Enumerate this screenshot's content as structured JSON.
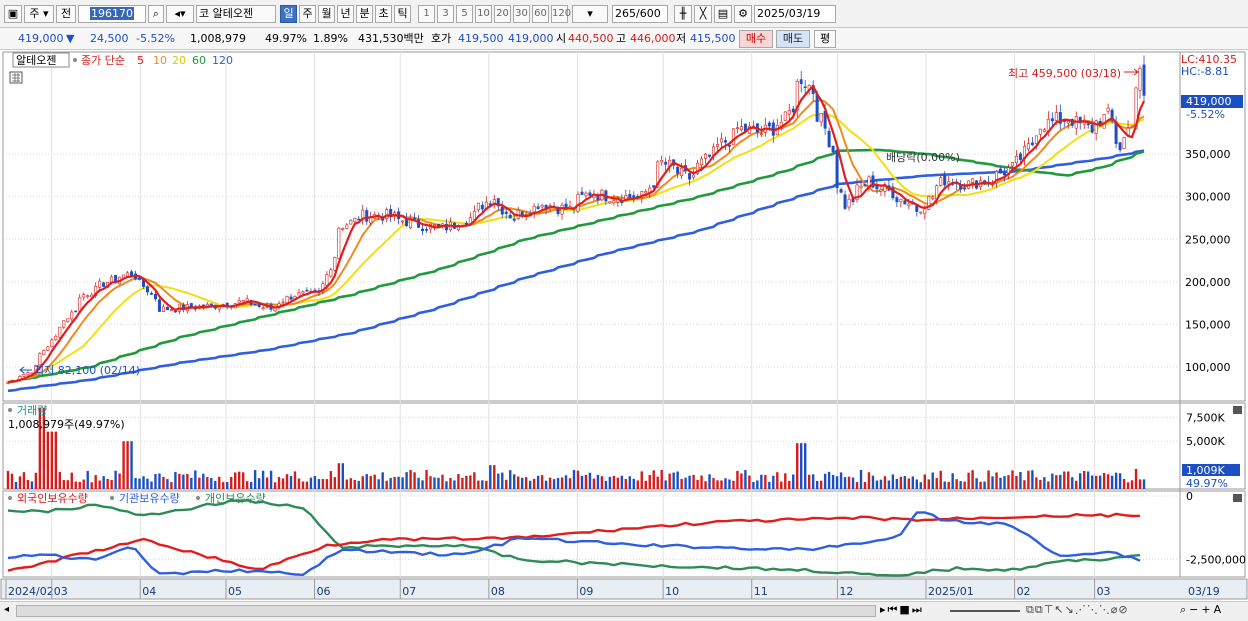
{
  "toolbar": {
    "period_type": "주",
    "prev_label": "전",
    "code": "196170",
    "market_tag": "코",
    "stock_name": "알테오젠",
    "periods": [
      "일",
      "주",
      "월",
      "년",
      "분",
      "초",
      "틱"
    ],
    "selected_period": "일",
    "intervals": [
      "1",
      "3",
      "5",
      "10",
      "20",
      "30",
      "60",
      "120"
    ],
    "count": "265",
    "max_count": "/600",
    "date": "2025/03/19"
  },
  "info": {
    "price": "419,000",
    "arrow": "▼",
    "change": "24,500",
    "change_pct": "-5.52%",
    "volume": "1,008,979",
    "vol_ratio": "49.97%",
    "turnover": "1.89%",
    "amount": "431,530백만",
    "bid_label": "호가",
    "bid": "419,500",
    "ask": "419,000",
    "open_label": "시",
    "open": "440,500",
    "high_label": "고",
    "high": "446,000",
    "low_label": "저",
    "low": "415,500",
    "buy": "매수",
    "sell": "매도",
    "eval": "평"
  },
  "colors": {
    "ma5": "#e01e1e",
    "ma10": "#f08a1c",
    "ma20": "#f0e010",
    "ma60": "#1f9a3c",
    "ma120": "#2f5fe0",
    "up": "#d61b1b",
    "down": "#1c4fc4",
    "foreign": "#e01e1e",
    "inst": "#2f5fe0",
    "indiv": "#2e8b57"
  },
  "chart_data": [
    {
      "type": "candlestick",
      "title": "알테오젠",
      "indicator_label": "종가 단순",
      "ma_periods": [
        "5",
        "10",
        "20",
        "60",
        "120"
      ],
      "lc_label": "LC:410.35",
      "hc_label": "HC:-8.81",
      "current_price_label": "419,000",
      "current_pct_label": "-5.52%",
      "high_annotation": "최고 459,500 (03/18)",
      "low_annotation": "최저 82,100 (02/14)",
      "dividend_annotation": "배당락(0.00%)",
      "ylim": [
        60000,
        470000
      ],
      "y_ticks": [
        100000,
        150000,
        200000,
        250000,
        300000,
        350000
      ],
      "y_tick_labels": [
        "100,000",
        "150,000",
        "200,000",
        "250,000",
        "300,000",
        "350,000"
      ],
      "x_months": [
        "2024/02",
        "03",
        "04",
        "05",
        "06",
        "07",
        "08",
        "09",
        "10",
        "11",
        "12",
        "2025/01",
        "02",
        "03",
        "03/19"
      ],
      "close_path": [
        [
          "2024-02-14",
          82100
        ],
        [
          "2024-02-22",
          95000
        ],
        [
          "2024-03-04",
          150000
        ],
        [
          "2024-03-12",
          185000
        ],
        [
          "2024-03-20",
          200000
        ],
        [
          "2024-03-28",
          210000
        ],
        [
          "2024-04-02",
          195000
        ],
        [
          "2024-04-08",
          168000
        ],
        [
          "2024-04-18",
          170000
        ],
        [
          "2024-04-26",
          172000
        ],
        [
          "2024-05-07",
          177000
        ],
        [
          "2024-05-16",
          168000
        ],
        [
          "2024-05-24",
          185000
        ],
        [
          "2024-06-03",
          185000
        ],
        [
          "2024-06-10",
          265000
        ],
        [
          "2024-06-18",
          278000
        ],
        [
          "2024-06-26",
          278000
        ],
        [
          "2024-07-04",
          270000
        ],
        [
          "2024-07-15",
          262000
        ],
        [
          "2024-07-25",
          275000
        ],
        [
          "2024-08-02",
          300000
        ],
        [
          "2024-08-09",
          275000
        ],
        [
          "2024-08-19",
          292000
        ],
        [
          "2024-08-29",
          285000
        ],
        [
          "2024-09-05",
          305000
        ],
        [
          "2024-09-13",
          300000
        ],
        [
          "2024-09-24",
          300000
        ],
        [
          "2024-10-01",
          340000
        ],
        [
          "2024-10-10",
          322000
        ],
        [
          "2024-10-18",
          350000
        ],
        [
          "2024-10-28",
          380000
        ],
        [
          "2024-11-05",
          375000
        ],
        [
          "2024-11-13",
          390000
        ],
        [
          "2024-11-19",
          440000
        ],
        [
          "2024-11-22",
          425000
        ],
        [
          "2024-11-27",
          380000
        ],
        [
          "2024-12-04",
          290000
        ],
        [
          "2024-12-12",
          318000
        ],
        [
          "2024-12-20",
          305000
        ],
        [
          "2024-12-30",
          285000
        ],
        [
          "2025-01-08",
          320000
        ],
        [
          "2025-01-16",
          315000
        ],
        [
          "2025-01-24",
          320000
        ],
        [
          "2025-02-03",
          340000
        ],
        [
          "2025-02-11",
          385000
        ],
        [
          "2025-02-20",
          392000
        ],
        [
          "2025-02-28",
          380000
        ],
        [
          "2025-03-06",
          395000
        ],
        [
          "2025-03-11",
          358000
        ],
        [
          "2025-03-14",
          390000
        ],
        [
          "2025-03-18",
          443500
        ],
        [
          "2025-03-19",
          419000
        ]
      ],
      "ma60_path": [
        [
          "2024-02-14",
          82000
        ],
        [
          "2024-03-14",
          100000
        ],
        [
          "2024-04-15",
          135000
        ],
        [
          "2024-05-15",
          160000
        ],
        [
          "2024-06-14",
          185000
        ],
        [
          "2024-07-15",
          215000
        ],
        [
          "2024-08-14",
          250000
        ],
        [
          "2024-09-13",
          275000
        ],
        [
          "2024-10-14",
          300000
        ],
        [
          "2024-11-13",
          330000
        ],
        [
          "2024-12-02",
          354000
        ],
        [
          "2024-12-16",
          355000
        ],
        [
          "2025-01-02",
          350000
        ],
        [
          "2025-01-20",
          340000
        ],
        [
          "2025-02-03",
          332000
        ],
        [
          "2025-02-20",
          325000
        ],
        [
          "2025-03-05",
          335000
        ],
        [
          "2025-03-19",
          353000
        ]
      ],
      "ma120_path": [
        [
          "2024-02-14",
          72000
        ],
        [
          "2024-03-14",
          85000
        ],
        [
          "2024-04-15",
          105000
        ],
        [
          "2024-05-15",
          120000
        ],
        [
          "2024-06-14",
          140000
        ],
        [
          "2024-07-15",
          170000
        ],
        [
          "2024-08-14",
          205000
        ],
        [
          "2024-09-13",
          235000
        ],
        [
          "2024-10-14",
          260000
        ],
        [
          "2024-11-13",
          295000
        ],
        [
          "2024-12-02",
          315000
        ],
        [
          "2025-01-02",
          325000
        ],
        [
          "2025-02-03",
          330000
        ],
        [
          "2025-03-05",
          345000
        ],
        [
          "2025-03-19",
          354000
        ]
      ]
    },
    {
      "type": "bar",
      "title": "거래량",
      "value_label": "1,008,979주(49.97%)",
      "ylim": [
        0,
        9000000
      ],
      "y_ticks": [
        5000000,
        7500000
      ],
      "y_tick_labels": [
        "5,000K",
        "7,500K"
      ],
      "current_label": "1,009K",
      "current_pct_label": "49.97%",
      "spikes": [
        [
          "2024-02-26",
          8500000
        ],
        [
          "2024-02-29",
          6000000
        ],
        [
          "2024-03-27",
          5000000
        ],
        [
          "2024-06-10",
          2700000
        ],
        [
          "2024-08-02",
          2500000
        ],
        [
          "2024-11-19",
          4800000
        ],
        [
          "2025-03-18",
          2100000
        ],
        [
          "2025-03-19",
          1008979
        ]
      ]
    },
    {
      "type": "line",
      "series": [
        {
          "name": "외국인보유수량"
        },
        {
          "name": "기관보유수량"
        },
        {
          "name": "개인보유수량"
        }
      ],
      "ylim": [
        -3200000,
        200000
      ],
      "y_ticks": [
        0,
        -2500000
      ],
      "y_tick_labels": [
        "0",
        "-2,500,000"
      ]
    }
  ]
}
